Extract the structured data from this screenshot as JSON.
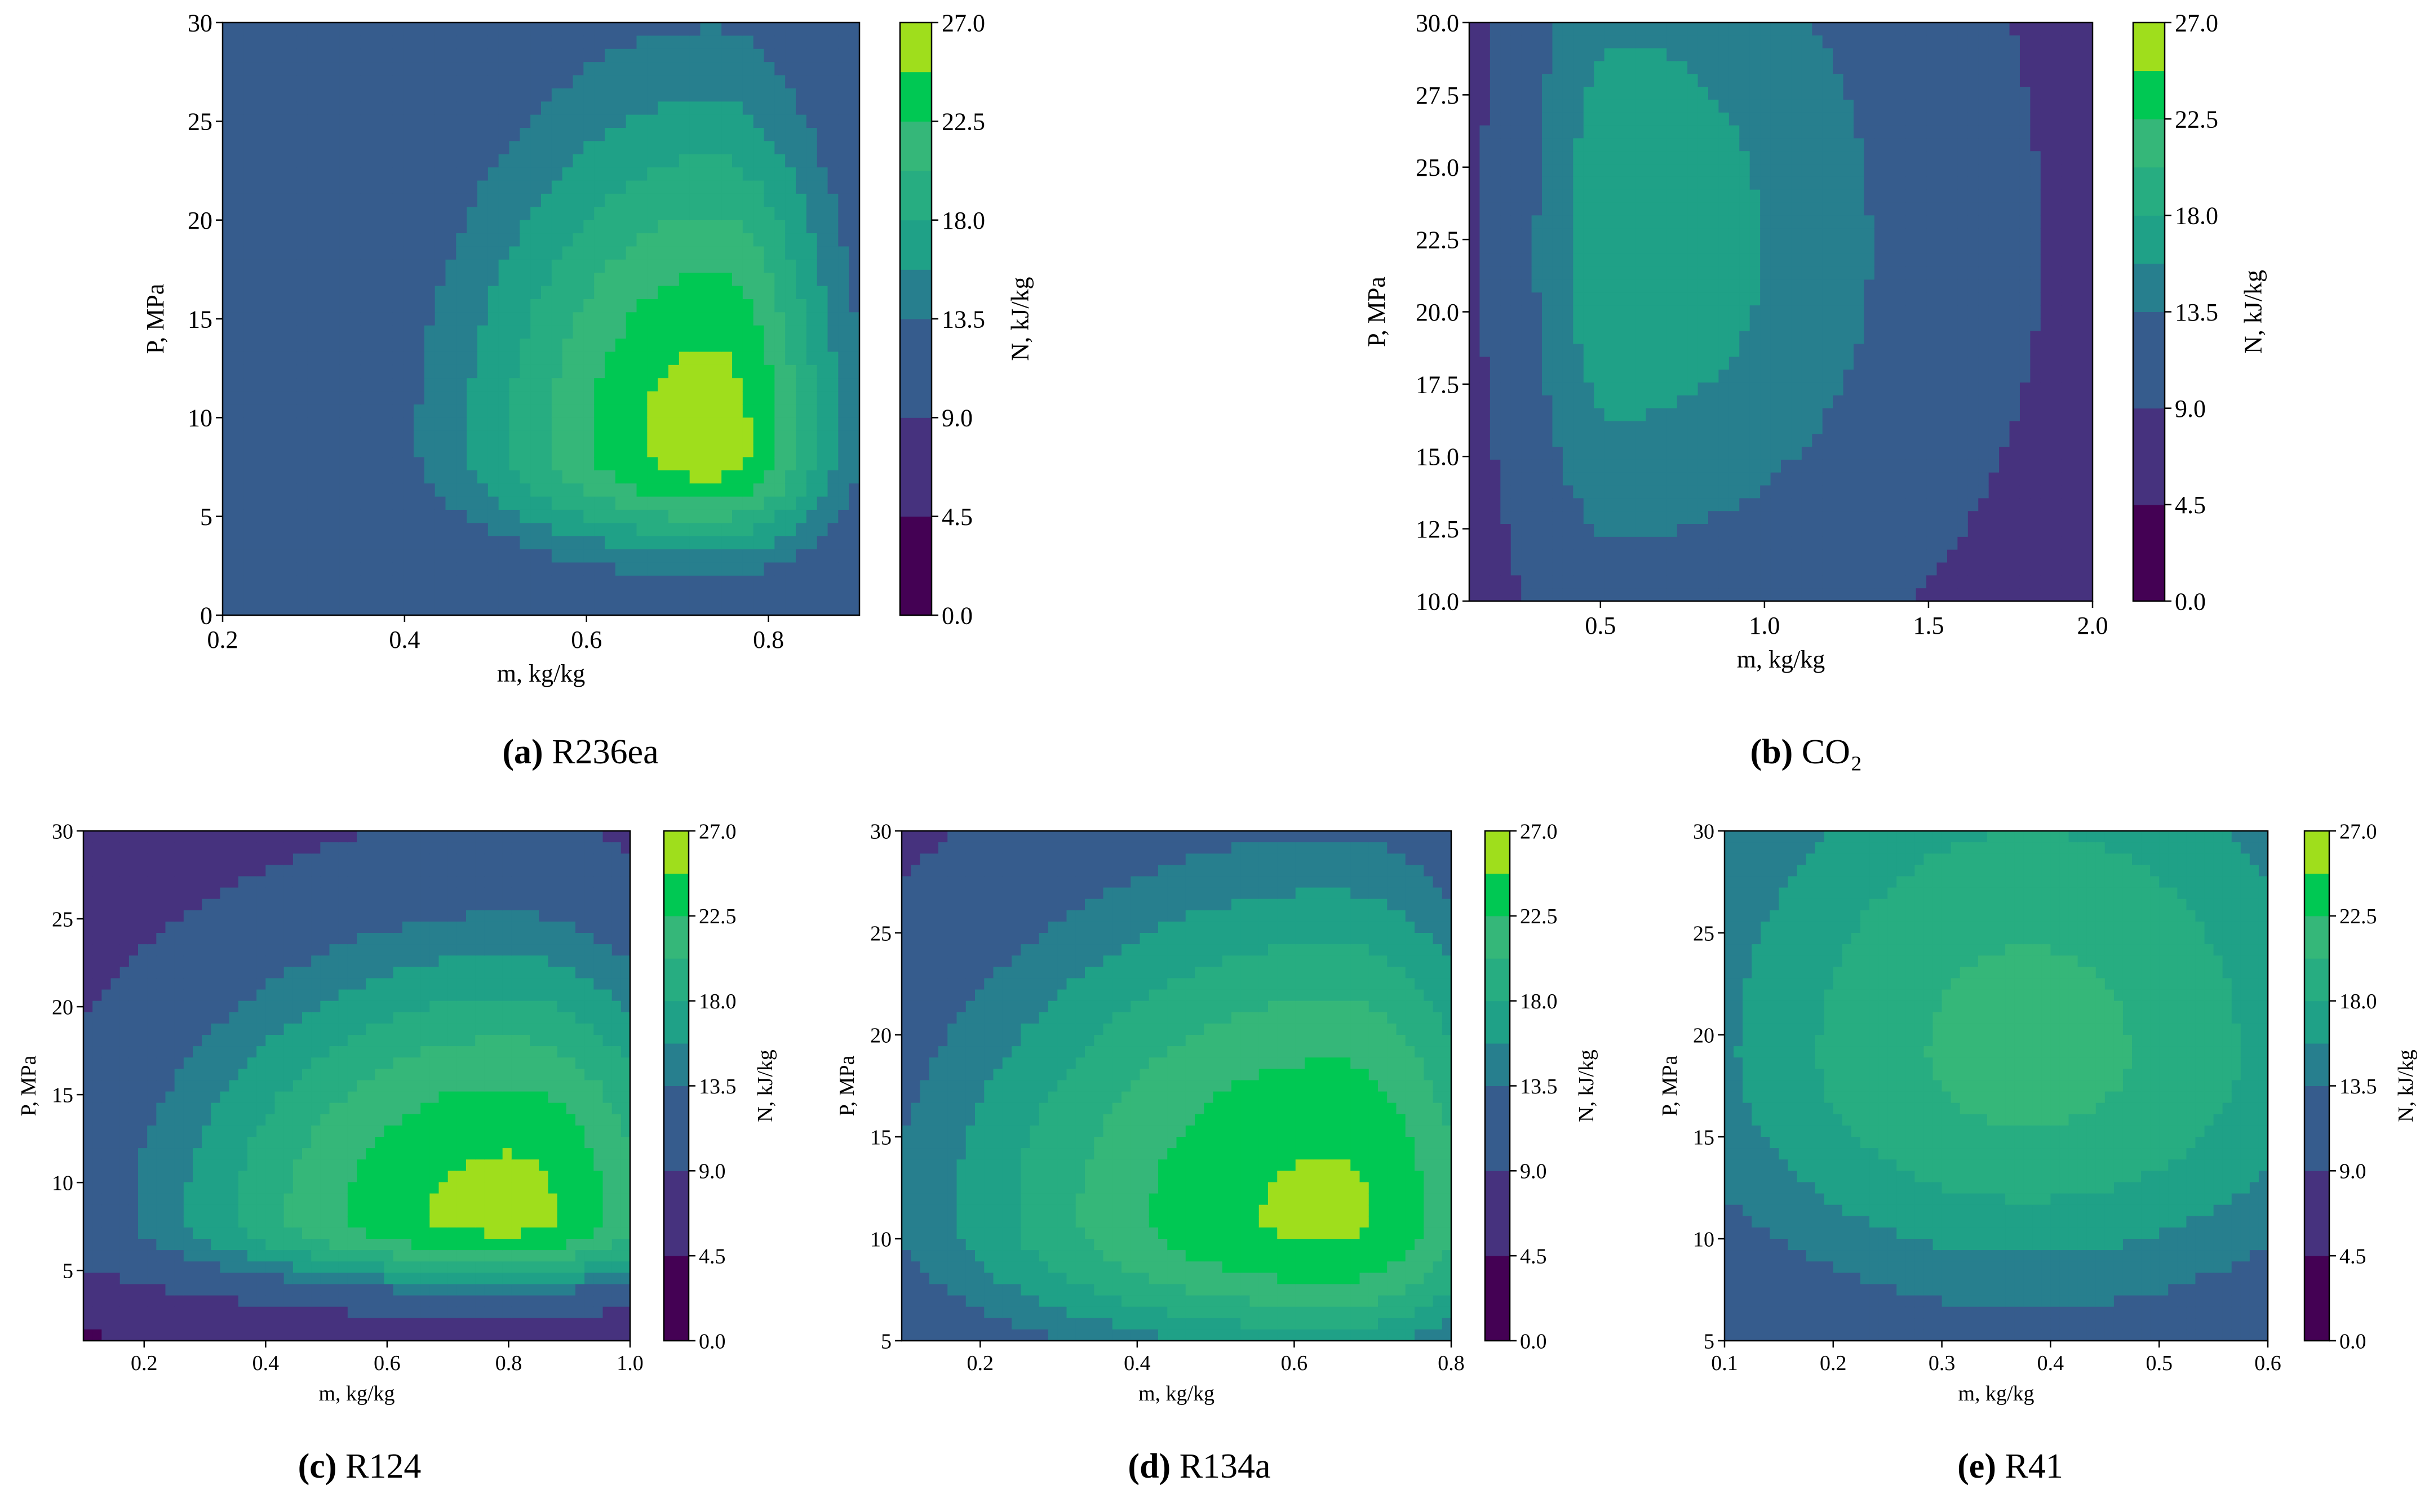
{
  "colorbar": {
    "label": "N, kJ/kg",
    "ticks": [
      "0.0",
      "4.5",
      "9.0",
      "13.5",
      "18.0",
      "22.5",
      "27.0"
    ],
    "levels": [
      0,
      4.5,
      9,
      13.5,
      15.75,
      18,
      20.25,
      22.5,
      24.75,
      27
    ],
    "colors": [
      "#440154",
      "#46327e",
      "#365c8d",
      "#277f8e",
      "#1fa187",
      "#27ad81",
      "#35b779",
      "#00c853",
      "#9fde1c",
      "#e0e000"
    ]
  },
  "chart_data": [
    {
      "id": "a",
      "type": "contour",
      "caption_letter": "(a)",
      "caption_name": "R236ea",
      "xlabel": "m, kg/kg",
      "ylabel": "P, MPa",
      "xlim": [
        0.2,
        0.9
      ],
      "ylim": [
        0,
        30
      ],
      "xticks": [
        "0.2",
        "0.4",
        "0.6",
        "0.8"
      ],
      "xtick_values": [
        0.2,
        0.4,
        0.6,
        0.8
      ],
      "yticks": [
        "0",
        "5",
        "10",
        "15",
        "20",
        "25",
        "30"
      ],
      "ytick_values": [
        0,
        5,
        10,
        15,
        20,
        25,
        30
      ],
      "peak": {
        "m": 0.74,
        "P": 8.5,
        "N": 26.0
      },
      "spread": {
        "m_left": 0.2,
        "m_right": 0.1,
        "p_below": 4.0,
        "p_above": 13.0
      },
      "base": 9.0,
      "summary": "Maximum N above 24.75 kJ/kg near m = 0.74 kg/kg, P = 5-14 MPa"
    },
    {
      "id": "b",
      "type": "contour",
      "caption_letter": "(b)",
      "caption_name": "CO₂",
      "xlabel": "m, kg/kg",
      "ylabel": "P, MPa",
      "xlim": [
        0.1,
        2.0
      ],
      "ylim": [
        10,
        30
      ],
      "xticks": [
        "0.5",
        "1.0",
        "1.5",
        "2.0"
      ],
      "xtick_values": [
        0.5,
        1.0,
        1.5,
        2.0
      ],
      "yticks": [
        "10.0",
        "12.5",
        "15.0",
        "17.5",
        "20.0",
        "22.5",
        "25.0",
        "27.5",
        "30.0"
      ],
      "ytick_values": [
        10,
        12.5,
        15,
        17.5,
        20,
        22.5,
        25,
        27.5,
        30
      ],
      "peak": {
        "m": 0.55,
        "P": 22.0,
        "N": 17.0
      },
      "spread": {
        "m_left": 0.35,
        "m_right": 1.1,
        "p_below": 14.0,
        "p_above": 18.0
      },
      "base": 1.0,
      "summary": "Maximum N about 15.75-18 kJ/kg near m = 0.55 kg/kg, P = 17-28 MPa"
    },
    {
      "id": "c",
      "type": "contour",
      "caption_letter": "(c)",
      "caption_name": "R124",
      "xlabel": "m, kg/kg",
      "ylabel": "P, MPa",
      "xlim": [
        0.1,
        1.0
      ],
      "ylim": [
        1,
        30
      ],
      "xticks": [
        "0.2",
        "0.4",
        "0.6",
        "0.8",
        "1.0"
      ],
      "xtick_values": [
        0.2,
        0.4,
        0.6,
        0.8,
        1.0
      ],
      "yticks": [
        "5",
        "10",
        "15",
        "20",
        "25",
        "30"
      ],
      "ytick_values": [
        5,
        10,
        15,
        20,
        25,
        30
      ],
      "peak": {
        "m": 0.8,
        "P": 8.0,
        "N": 25.5
      },
      "spread": {
        "m_left": 0.5,
        "m_right": 0.3,
        "p_below": 3.5,
        "p_above": 14.0
      },
      "base": 3.0,
      "summary": "Maximum N above 24.75 kJ/kg near m = 0.8 kg/kg, P = 5-12 MPa"
    },
    {
      "id": "d",
      "type": "contour",
      "caption_letter": "(d)",
      "caption_name": "R134a",
      "xlabel": "m, kg/kg",
      "ylabel": "P, MPa",
      "xlim": [
        0.1,
        0.8
      ],
      "ylim": [
        5,
        30
      ],
      "xticks": [
        "0.2",
        "0.4",
        "0.6",
        "0.8"
      ],
      "xtick_values": [
        0.2,
        0.4,
        0.6,
        0.8
      ],
      "yticks": [
        "5",
        "10",
        "15",
        "20",
        "25",
        "30"
      ],
      "ytick_values": [
        5,
        10,
        15,
        20,
        25,
        30
      ],
      "peak": {
        "m": 0.65,
        "P": 11.0,
        "N": 25.2
      },
      "spread": {
        "m_left": 0.45,
        "m_right": 0.22,
        "p_below": 6.0,
        "p_above": 15.0
      },
      "base": 3.5,
      "summary": "Maximum N above 24.75 kJ/kg near m = 0.65 kg/kg, P = 9-13 MPa"
    },
    {
      "id": "e",
      "type": "contour",
      "caption_letter": "(e)",
      "caption_name": "R41",
      "xlabel": "m, kg/kg",
      "ylabel": "P, MPa",
      "xlim": [
        0.1,
        0.6
      ],
      "ylim": [
        5,
        30
      ],
      "xticks": [
        "0.1",
        "0.2",
        "0.3",
        "0.4",
        "0.5",
        "0.6"
      ],
      "xtick_values": [
        0.1,
        0.2,
        0.3,
        0.4,
        0.5,
        0.6
      ],
      "yticks": [
        "5",
        "10",
        "15",
        "20",
        "25",
        "30"
      ],
      "ytick_values": [
        5,
        10,
        15,
        20,
        25,
        30
      ],
      "peak": {
        "m": 0.38,
        "P": 19.0,
        "N": 21.0
      },
      "spread": {
        "m_left": 0.3,
        "m_right": 0.3,
        "p_below": 11.0,
        "p_above": 17.0
      },
      "base": 5.0,
      "summary": "Maximum N about 20.25-22.5 kJ/kg near m = 0.38 kg/kg, P = 14-27 MPa"
    }
  ]
}
